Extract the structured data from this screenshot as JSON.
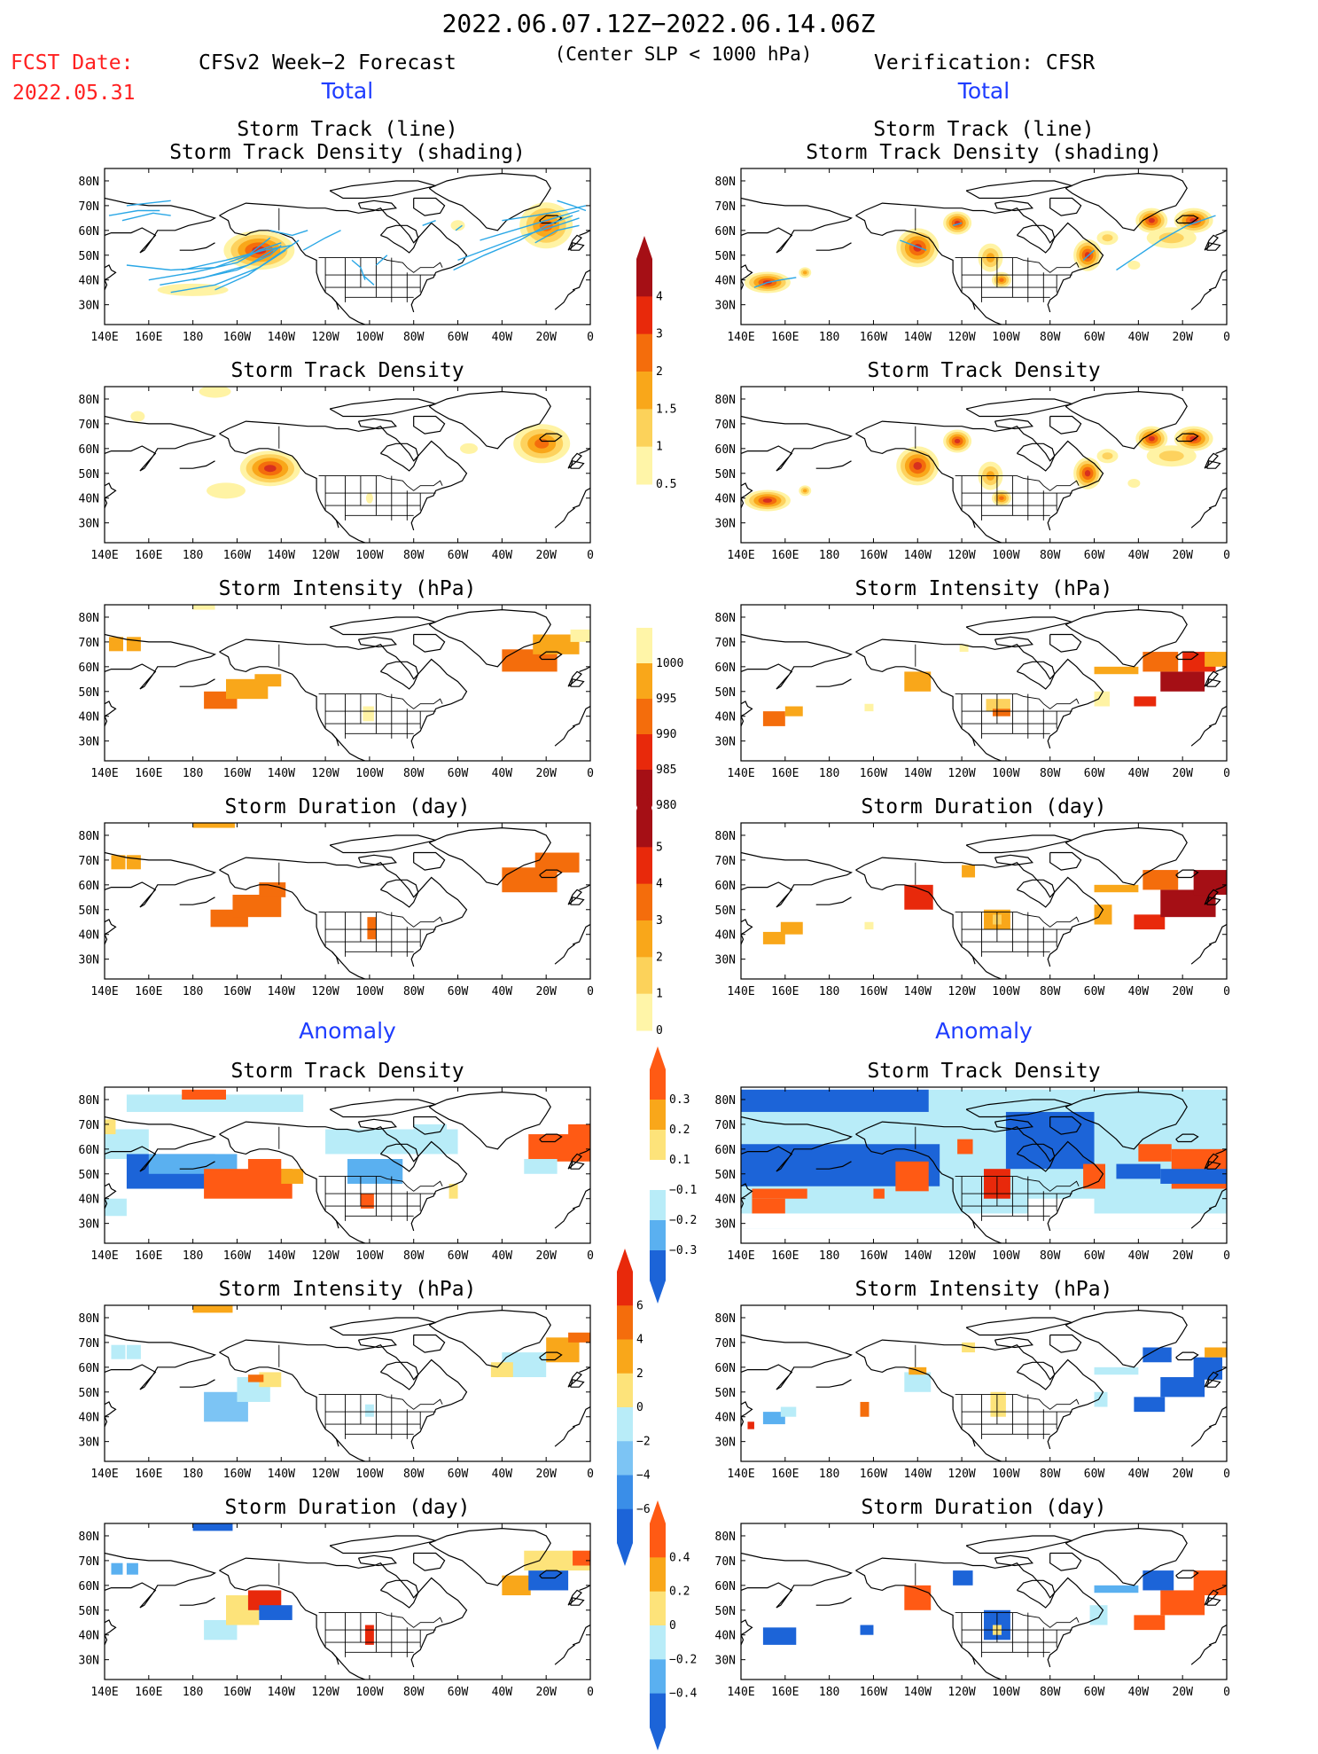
{
  "header": {
    "title": "2022.06.07.12Z−2022.06.14.06Z",
    "subtitle": "(Center SLP < 1000 hPa)",
    "fcst_label": "FCST Date:",
    "fcst_date": "2022.05.31",
    "left_model": "CFSv2 Week−2 Forecast",
    "right_model": "Verification: CFSR",
    "total_left": "Total",
    "total_right": "Total",
    "anomaly_left": "Anomaly",
    "anomaly_right": "Anomaly"
  },
  "panel_titles": {
    "track_line": "Storm Track (line)",
    "track_shading": "Storm Track Density (shading)",
    "density": "Storm Track Density",
    "intensity": "Storm Intensity (hPa)",
    "duration": "Storm Duration (day)"
  },
  "axes": {
    "lon_labels": [
      "140E",
      "160E",
      "180",
      "160W",
      "140W",
      "120W",
      "100W",
      "80W",
      "60W",
      "40W",
      "20W",
      "0"
    ],
    "lat_labels": [
      "80N",
      "70N",
      "60N",
      "50N",
      "40N",
      "30N"
    ]
  },
  "colorbars": {
    "density": {
      "labels": [
        "4",
        "3",
        "2",
        "1.5",
        "1",
        "0.5"
      ],
      "colors": [
        "#a50f15",
        "#e8290b",
        "#f46d0c",
        "#f9a71a",
        "#fcd25a",
        "#fff5a8"
      ]
    },
    "intensity": {
      "labels": [
        "1000",
        "995",
        "990",
        "985",
        "980"
      ],
      "colors": [
        "#fff5a8",
        "#f9a71a",
        "#f46d0c",
        "#e8290b",
        "#a50f15"
      ]
    },
    "duration": {
      "labels": [
        "5",
        "4",
        "3",
        "2",
        "1",
        "0"
      ],
      "colors": [
        "#a50f15",
        "#e8290b",
        "#f46d0c",
        "#f9a71a",
        "#fcd25a",
        "#fff5a8"
      ]
    },
    "anom_density": {
      "labels": [
        "0.3",
        "0.2",
        "0.1",
        "−0.1",
        "−0.2",
        "−0.3"
      ],
      "colors": [
        "#ff5a14",
        "#f9a71a",
        "#fde37a",
        "#ffffff",
        "#b8ecf8",
        "#5ab0f0",
        "#1c64d8"
      ]
    },
    "anom_intensity": {
      "labels": [
        "6",
        "4",
        "2",
        "0",
        "−2",
        "−4",
        "−6"
      ],
      "colors": [
        "#e8290b",
        "#f46d0c",
        "#f9a71a",
        "#fde37a",
        "#b8ecf8",
        "#7cc4f4",
        "#3a8ee8",
        "#1c64d8"
      ]
    },
    "anom_duration": {
      "labels": [
        "0.4",
        "0.2",
        "0",
        "−0.2",
        "−0.4"
      ],
      "colors": [
        "#ff5a14",
        "#f9a71a",
        "#fde37a",
        "#b8ecf8",
        "#5ab0f0",
        "#1c64d8"
      ]
    }
  }
}
